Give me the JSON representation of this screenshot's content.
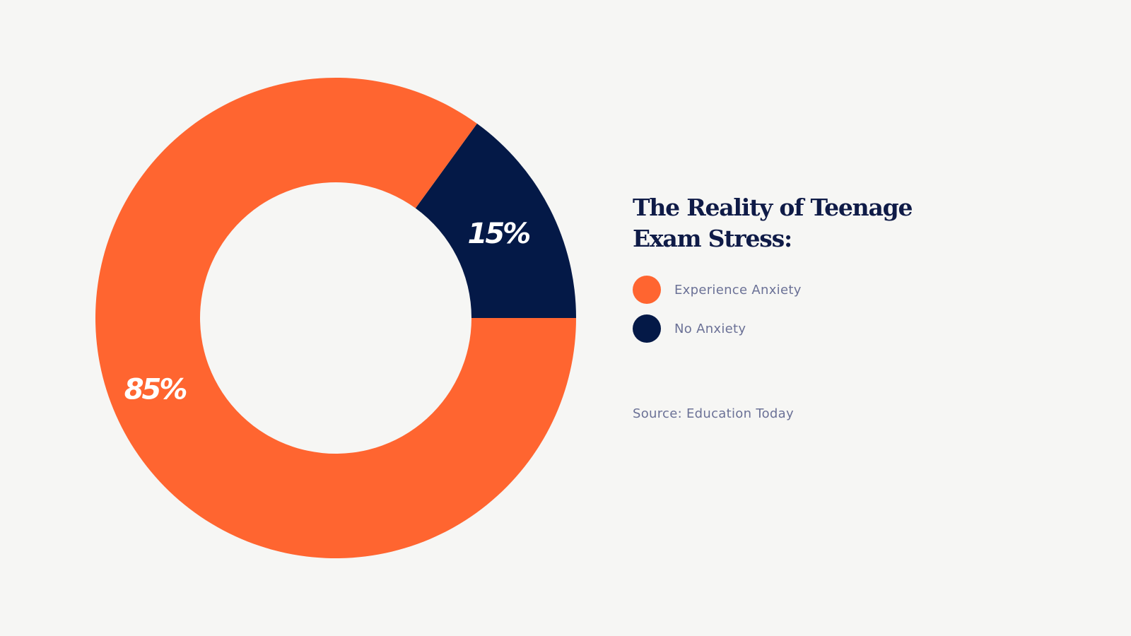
{
  "chart_data": {
    "type": "pie",
    "style": "donut",
    "title": "The Reality of Teenage Exam Stress:",
    "title_lines": [
      "The Reality of Teenage",
      "Exam Stress:"
    ],
    "slices": [
      {
        "label": "Experience Anxiety",
        "value": 85,
        "display": "85%",
        "color": "#ff6530"
      },
      {
        "label": "No Anxiety",
        "value": 15,
        "display": "15%",
        "color": "#041947"
      }
    ],
    "legend_placement": "right",
    "source": "Source: Education Today"
  },
  "colors": {
    "background": "#f6f6f4",
    "title": "#0f1b47",
    "muted_text": "#6b7196"
  }
}
